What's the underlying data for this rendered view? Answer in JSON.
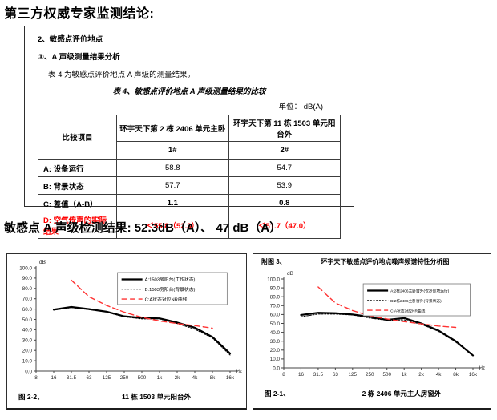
{
  "page": {
    "title": "第三方权威专家监测结论:"
  },
  "report": {
    "section": "2、敏感点评价地点",
    "subsection": "①、A 声级测量结果分析",
    "paragraph": "表 4 为敏感点评价地点 A 声级的测量结果。",
    "table_caption": "表 4、敏感点评价地点 A 声级测量结果的比较",
    "unit_label": "单位：  dB(A)",
    "table": {
      "corner_header": "比较项目",
      "columns": [
        {
          "title": "环宇天下第 2 栋 2406 单元主卧",
          "sub": "1#"
        },
        {
          "title": "环宇天下第 11 栋 1503 单元阳台外",
          "sub": "2#"
        }
      ],
      "rows": [
        {
          "label": "A: 设备运行",
          "values": [
            "58.8",
            "54.7"
          ],
          "style": "normal"
        },
        {
          "label": "B: 背景状态",
          "values": [
            "57.7",
            "53.9"
          ],
          "style": "normal"
        },
        {
          "label": "C: 差值（A-B）",
          "values": [
            "1.1",
            "0.8"
          ],
          "style": "bold"
        },
        {
          "label": "D: 空气传声的实际结果",
          "values": [
            "＜55.8（52.3）",
            "＜51.7（47.0）"
          ],
          "style": "red"
        }
      ]
    }
  },
  "result_line": "敏感点 A 声级检测结果: 52.3dB（A）、 47 dB（A）",
  "colors": {
    "alert_red": "#ff0000",
    "chart_red": "#ff3333",
    "line_black": "#000000"
  },
  "chart_data": [
    {
      "type": "line",
      "position": "left",
      "caption_label": "图 2-2、",
      "caption_text": "11 栋 1503 单元阳台外",
      "y_unit": "dB",
      "x_unit": "Hz",
      "ylim": [
        0,
        100
      ],
      "y_step": 10,
      "grid": false,
      "legend_position": "upper-right",
      "x_categories": [
        "8",
        "16",
        "31.5",
        "63",
        "125",
        "250",
        "500",
        "1k",
        "2k",
        "4k",
        "8k",
        "16k"
      ],
      "series": [
        {
          "name": "A:1503房阳台(工作状态)",
          "line": "solid",
          "values": [
            null,
            59.5,
            62,
            60,
            57.5,
            53,
            51.5,
            51,
            47,
            42,
            33,
            17
          ]
        },
        {
          "name": "B:1503房阳台(背景状态)",
          "line": "dotted",
          "values": [
            null,
            59,
            61.5,
            59.5,
            57,
            52.5,
            50.5,
            50.5,
            46,
            40.5,
            32,
            15.5
          ]
        },
        {
          "name": "C:A状态对应NR曲线",
          "line": "dashed",
          "values": [
            null,
            null,
            88,
            72,
            63.5,
            57,
            52,
            48.5,
            46,
            44,
            41.5,
            null
          ]
        }
      ]
    },
    {
      "type": "line",
      "position": "right",
      "header_label": "附图 3、",
      "title": "环宇天下敏感点评价地点噪声频谱特性分析图",
      "caption_label": "图 2-1、",
      "caption_text": "2 栋 2406 单元主人房窗外",
      "y_unit": "dB",
      "x_unit": "Hz",
      "ylim": [
        0,
        100
      ],
      "y_step": 10,
      "grid": false,
      "legend_position": "upper-right",
      "x_categories": [
        "8",
        "16",
        "31.5",
        "63",
        "125",
        "250",
        "500",
        "1k",
        "2k",
        "4k",
        "8k",
        "16k"
      ],
      "series": [
        {
          "name": "A:2栋2406主卧窗外(仅冷却塔运行)",
          "line": "solid",
          "values": [
            null,
            59.5,
            62,
            61.5,
            60,
            57.5,
            54,
            56,
            50,
            42,
            30,
            14
          ]
        },
        {
          "name": "B:2栋2406主卧窗外(背景状态)",
          "line": "dotted",
          "values": [
            null,
            57.5,
            60.5,
            60.5,
            59.5,
            56,
            53.5,
            54,
            49,
            41,
            29,
            13.5
          ]
        },
        {
          "name": "C:A状态对应NR曲线",
          "line": "dashed",
          "values": [
            null,
            null,
            91,
            73,
            64.5,
            58.5,
            55,
            52,
            49.5,
            47,
            45.5,
            null
          ]
        }
      ]
    }
  ]
}
